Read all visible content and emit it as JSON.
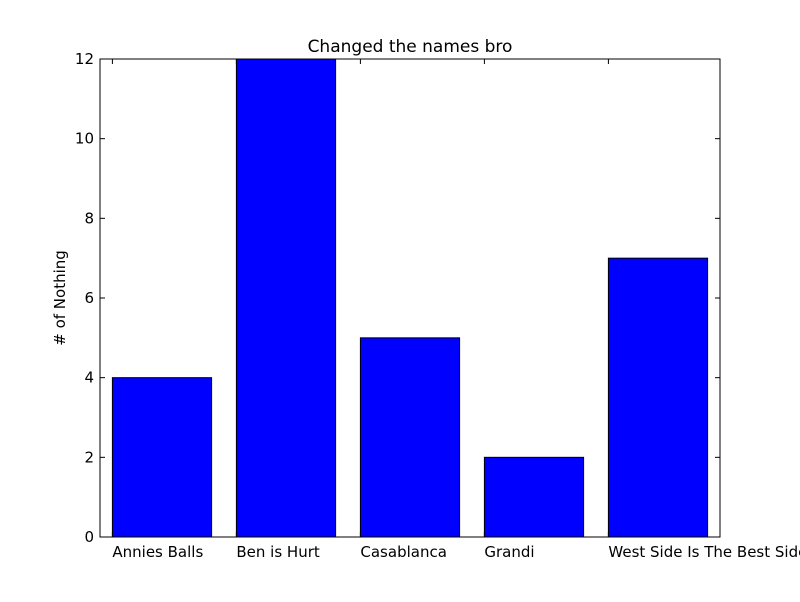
{
  "chart_data": {
    "type": "bar",
    "title": "Changed the names bro",
    "xlabel": "",
    "ylabel": "# of Nothing",
    "categories": [
      "Annies Balls",
      "Ben is Hurt",
      "Casablanca",
      "Grandi",
      "West Side Is The Best Side"
    ],
    "values": [
      4,
      12,
      5,
      2,
      7
    ],
    "ylim": [
      0,
      12
    ],
    "yticks": [
      0,
      2,
      4,
      6,
      8,
      10,
      12
    ],
    "grid": false,
    "bar_color": "#0000ff",
    "edge_color": "#000000"
  }
}
